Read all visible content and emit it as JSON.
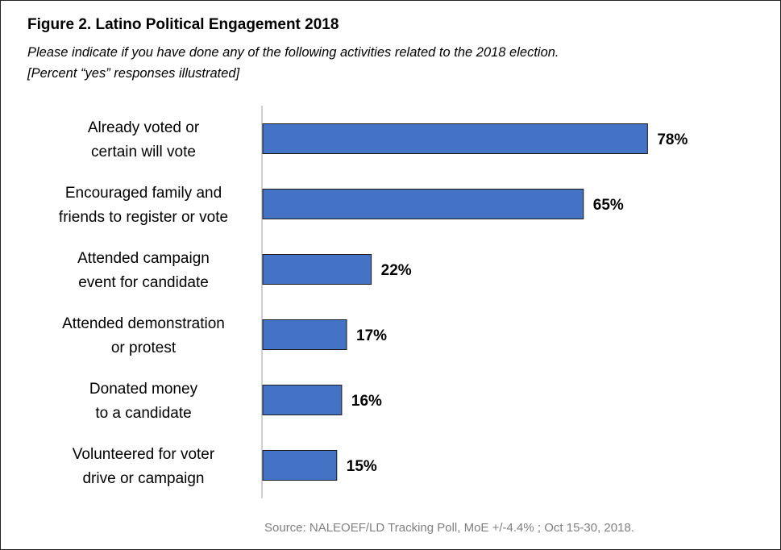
{
  "title": "Figure 2. Latino Political Engagement 2018",
  "subtitle_line1": "Please indicate if you have done any of the following activities related to the 2018 election.",
  "subtitle_line2": "[Percent “yes” responses illustrated]",
  "source": "Source: NALEOEF/LD Tracking Poll, MoE +/-4.4% ; Oct 15-30, 2018.",
  "colors": {
    "bar": "#4472C4",
    "bar_border": "#1a1a1a",
    "axis": "#bfbfbf",
    "source_text": "#808080"
  },
  "chart_data": {
    "type": "bar",
    "orientation": "horizontal",
    "categories": [
      [
        "Already voted or",
        "certain will vote"
      ],
      [
        "Encouraged family and",
        "friends to register or vote"
      ],
      [
        "Attended campaign",
        "event for candidate"
      ],
      [
        "Attended demonstration",
        "or protest"
      ],
      [
        "Donated money",
        "to a candidate"
      ],
      [
        "Volunteered for voter",
        "drive or campaign"
      ]
    ],
    "values": [
      78,
      65,
      22,
      17,
      16,
      15
    ],
    "data_labels": [
      "78%",
      "65%",
      "22%",
      "17%",
      "16%",
      "15%"
    ],
    "xlim": [
      0,
      100
    ],
    "grid": false,
    "legend": "none"
  }
}
